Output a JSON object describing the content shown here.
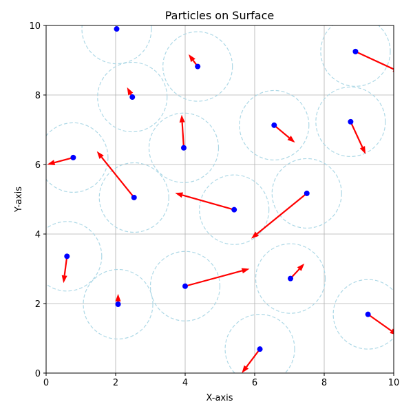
{
  "chart_data": {
    "type": "scatter",
    "title": "Particles on Surface",
    "xlabel": "X-axis",
    "ylabel": "Y-axis",
    "xlim": [
      0,
      10
    ],
    "ylim": [
      0,
      10
    ],
    "xticks": [
      0,
      2,
      4,
      6,
      8,
      10
    ],
    "yticks": [
      0,
      2,
      4,
      6,
      8,
      10
    ],
    "grid": true,
    "circle_radius": 1.0,
    "colors": {
      "particle": "#0000ff",
      "velocity": "#ff0000",
      "circle": "#add8e6",
      "grid": "#b0b0b0"
    },
    "particles": [
      {
        "x": 2.03,
        "y": 9.9,
        "vx": 0.0,
        "vy": 0.0
      },
      {
        "x": 4.36,
        "y": 8.82,
        "vx": -0.26,
        "vy": 0.35
      },
      {
        "x": 8.9,
        "y": 9.25,
        "vx": 1.3,
        "vy": -0.6
      },
      {
        "x": 2.48,
        "y": 7.94,
        "vx": -0.15,
        "vy": 0.28
      },
      {
        "x": 6.56,
        "y": 7.13,
        "vx": 0.6,
        "vy": -0.5
      },
      {
        "x": 8.76,
        "y": 7.23,
        "vx": 0.43,
        "vy": -0.93
      },
      {
        "x": 3.96,
        "y": 6.48,
        "vx": -0.06,
        "vy": 0.95
      },
      {
        "x": 0.78,
        "y": 6.2,
        "vx": -0.75,
        "vy": -0.2
      },
      {
        "x": 2.53,
        "y": 5.05,
        "vx": -1.07,
        "vy": 1.33
      },
      {
        "x": 5.41,
        "y": 4.7,
        "vx": -1.7,
        "vy": 0.48
      },
      {
        "x": 7.5,
        "y": 5.17,
        "vx": -1.6,
        "vy": -1.3
      },
      {
        "x": 0.6,
        "y": 3.36,
        "vx": -0.1,
        "vy": -0.77
      },
      {
        "x": 2.07,
        "y": 1.98,
        "vx": 0.0,
        "vy": 0.3
      },
      {
        "x": 4.0,
        "y": 2.5,
        "vx": 1.85,
        "vy": 0.5
      },
      {
        "x": 7.03,
        "y": 2.72,
        "vx": 0.4,
        "vy": 0.43
      },
      {
        "x": 6.15,
        "y": 0.69,
        "vx": -0.52,
        "vy": -0.69
      },
      {
        "x": 9.26,
        "y": 1.69,
        "vx": 0.85,
        "vy": -0.6
      }
    ]
  }
}
